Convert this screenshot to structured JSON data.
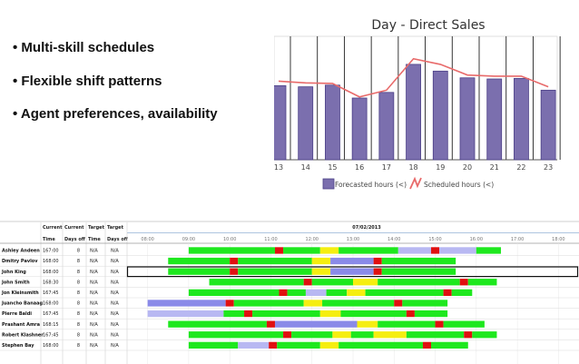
{
  "bullets": [
    "• Multi-skill schedules",
    "• Flexible shift patterns",
    "• Agent preferences, availability"
  ],
  "chart_data": {
    "type": "bar",
    "title": "Day - Direct Sales",
    "categories": [
      "13",
      "14",
      "15",
      "16",
      "17",
      "18",
      "19",
      "20",
      "21",
      "22",
      "23"
    ],
    "series": [
      {
        "name": "Forecasted hours (<)",
        "type": "bar",
        "values": [
          13.2,
          13.0,
          13.3,
          11.0,
          12.0,
          17.0,
          15.8,
          14.6,
          14.4,
          14.5,
          12.4
        ]
      },
      {
        "name": "Scheduled hours (<)",
        "type": "line",
        "values": [
          14.0,
          13.7,
          13.6,
          11.2,
          12.4,
          18.0,
          17.0,
          15.1,
          14.9,
          14.9,
          13.0
        ]
      }
    ],
    "ylim": [
      0,
      22
    ],
    "grid": "vertical",
    "legend": "bottom",
    "colors": {
      "bar": "#7b6fae",
      "bar_edge": "#4b3f86",
      "line": "#e86a6a"
    }
  },
  "schedule": {
    "date": "07/02/2013",
    "group_headers": [
      "Current",
      "Current",
      "Target",
      "Target"
    ],
    "col_headers": [
      "Time",
      "Days off",
      "Time",
      "Days off"
    ],
    "hours": [
      "08:00",
      "09:00",
      "10:00",
      "11:00",
      "12:00",
      "13:00",
      "14:00",
      "15:00",
      "16:00",
      "17:00",
      "18:00"
    ],
    "selected_row": 2,
    "colors": {
      "work": "#1ee81e",
      "break": "#e01010",
      "lunch": "#f5ee10",
      "other": "#8a8ae8",
      "idle": "#b8b8f2"
    },
    "rows": [
      {
        "name": "Ashley Andeen",
        "time": "167:00",
        "days_off": "8",
        "target_time": "N/A",
        "target_days_off": "N/A",
        "segments": [
          [
            9.0,
            11.1,
            "work"
          ],
          [
            11.1,
            11.3,
            "break"
          ],
          [
            11.3,
            12.2,
            "work"
          ],
          [
            12.2,
            12.65,
            "lunch"
          ],
          [
            12.65,
            14.1,
            "work"
          ],
          [
            14.1,
            14.9,
            "idle"
          ],
          [
            14.9,
            15.1,
            "break"
          ],
          [
            15.1,
            16.0,
            "idle"
          ],
          [
            16.0,
            16.6,
            "work"
          ]
        ]
      },
      {
        "name": "Dmitry Pavlov",
        "time": "168:00",
        "days_off": "8",
        "target_time": "N/A",
        "target_days_off": "N/A",
        "segments": [
          [
            8.5,
            10.0,
            "work"
          ],
          [
            10.0,
            10.2,
            "break"
          ],
          [
            10.2,
            12.0,
            "work"
          ],
          [
            12.0,
            12.45,
            "lunch"
          ],
          [
            12.45,
            13.5,
            "other"
          ],
          [
            13.5,
            13.7,
            "break"
          ],
          [
            13.7,
            15.5,
            "work"
          ]
        ]
      },
      {
        "name": "John King",
        "time": "168:00",
        "days_off": "8",
        "target_time": "N/A",
        "target_days_off": "N/A",
        "segments": [
          [
            8.5,
            10.0,
            "work"
          ],
          [
            10.0,
            10.2,
            "break"
          ],
          [
            10.2,
            12.0,
            "work"
          ],
          [
            12.0,
            12.45,
            "lunch"
          ],
          [
            12.45,
            13.5,
            "other"
          ],
          [
            13.5,
            13.7,
            "break"
          ],
          [
            13.7,
            15.5,
            "work"
          ]
        ]
      },
      {
        "name": "John Smith",
        "time": "168:30",
        "days_off": "8",
        "target_time": "N/A",
        "target_days_off": "N/A",
        "segments": [
          [
            9.5,
            11.8,
            "work"
          ],
          [
            11.8,
            12.0,
            "break"
          ],
          [
            12.0,
            13.0,
            "work"
          ],
          [
            13.0,
            13.6,
            "lunch"
          ],
          [
            13.6,
            15.6,
            "work"
          ],
          [
            15.6,
            15.8,
            "break"
          ],
          [
            15.8,
            16.5,
            "work"
          ]
        ]
      },
      {
        "name": "Jon Kleinsmith",
        "time": "167:45",
        "days_off": "8",
        "target_time": "N/A",
        "target_days_off": "N/A",
        "segments": [
          [
            9.0,
            11.2,
            "work"
          ],
          [
            11.2,
            11.4,
            "break"
          ],
          [
            11.4,
            11.85,
            "work"
          ],
          [
            11.85,
            12.35,
            "idle"
          ],
          [
            12.35,
            12.85,
            "work"
          ],
          [
            12.85,
            13.3,
            "lunch"
          ],
          [
            13.3,
            15.2,
            "work"
          ],
          [
            15.2,
            15.4,
            "break"
          ],
          [
            15.4,
            15.9,
            "work"
          ]
        ]
      },
      {
        "name": "Juancho Banaag",
        "time": "168:00",
        "days_off": "8",
        "target_time": "N/A",
        "target_days_off": "N/A",
        "segments": [
          [
            8.0,
            9.9,
            "other"
          ],
          [
            9.9,
            10.1,
            "break"
          ],
          [
            10.1,
            11.8,
            "work"
          ],
          [
            11.8,
            12.25,
            "lunch"
          ],
          [
            12.25,
            14.0,
            "work"
          ],
          [
            14.0,
            14.2,
            "break"
          ],
          [
            14.2,
            15.3,
            "work"
          ]
        ]
      },
      {
        "name": "Pierre Baldi",
        "time": "167:45",
        "days_off": "8",
        "target_time": "N/A",
        "target_days_off": "N/A",
        "segments": [
          [
            8.0,
            9.85,
            "idle"
          ],
          [
            9.85,
            10.35,
            "work"
          ],
          [
            10.35,
            10.55,
            "break"
          ],
          [
            10.55,
            12.2,
            "work"
          ],
          [
            12.2,
            12.7,
            "lunch"
          ],
          [
            12.7,
            14.3,
            "work"
          ],
          [
            14.3,
            14.5,
            "break"
          ],
          [
            14.5,
            15.3,
            "work"
          ]
        ]
      },
      {
        "name": "Prashant Amra",
        "time": "168:15",
        "days_off": "8",
        "target_time": "N/A",
        "target_days_off": "N/A",
        "segments": [
          [
            8.5,
            10.9,
            "work"
          ],
          [
            10.9,
            11.1,
            "break"
          ],
          [
            11.1,
            13.1,
            "other"
          ],
          [
            13.1,
            13.6,
            "lunch"
          ],
          [
            13.6,
            15.0,
            "work"
          ],
          [
            15.0,
            15.2,
            "break"
          ],
          [
            15.2,
            16.2,
            "work"
          ]
        ]
      },
      {
        "name": "Robert Klashner",
        "time": "167:45",
        "days_off": "8",
        "target_time": "N/A",
        "target_days_off": "N/A",
        "segments": [
          [
            9.0,
            11.3,
            "work"
          ],
          [
            11.3,
            11.5,
            "break"
          ],
          [
            11.5,
            12.5,
            "work"
          ],
          [
            12.5,
            12.95,
            "lunch"
          ],
          [
            12.95,
            13.5,
            "work"
          ],
          [
            13.5,
            14.3,
            "lunch"
          ],
          [
            14.3,
            15.7,
            "work"
          ],
          [
            15.7,
            15.9,
            "break"
          ],
          [
            15.9,
            16.5,
            "work"
          ]
        ]
      },
      {
        "name": "Stephen Bay",
        "time": "168:00",
        "days_off": "8",
        "target_time": "N/A",
        "target_days_off": "N/A",
        "segments": [
          [
            9.0,
            10.2,
            "work"
          ],
          [
            10.2,
            10.95,
            "idle"
          ],
          [
            10.95,
            11.15,
            "break"
          ],
          [
            11.15,
            12.2,
            "work"
          ],
          [
            12.2,
            12.65,
            "lunch"
          ],
          [
            12.65,
            14.7,
            "work"
          ],
          [
            14.7,
            14.9,
            "break"
          ],
          [
            14.9,
            15.8,
            "work"
          ]
        ]
      }
    ]
  }
}
